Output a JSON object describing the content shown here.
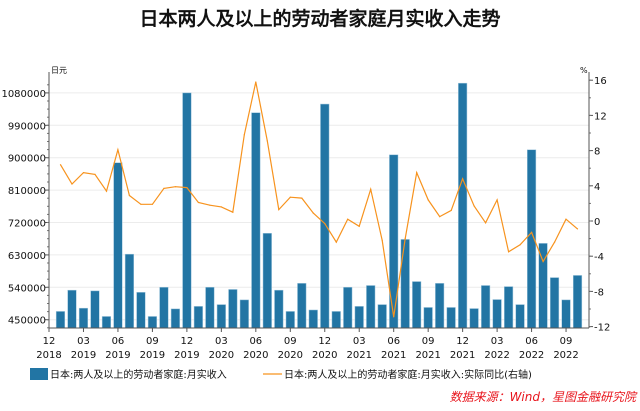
{
  "chart_data": {
    "type": "bar+line",
    "title": "日本两人及以上的劳动者家庭月实收入走势",
    "left_unit": "日元",
    "right_unit": "%",
    "left_ylim": [
      427000,
      1110000
    ],
    "left_ticks": [
      450000,
      540000,
      630000,
      720000,
      810000,
      900000,
      990000,
      1080000
    ],
    "right_ylim": [
      -12,
      16
    ],
    "right_ticks": [
      -12,
      -8,
      -4,
      0,
      4,
      8,
      12,
      16
    ],
    "x_tick_labels": [
      {
        "month": "12",
        "year": "2018"
      },
      {
        "month": "03",
        "year": "2019"
      },
      {
        "month": "06",
        "year": "2019"
      },
      {
        "month": "09",
        "year": "2019"
      },
      {
        "month": "12",
        "year": "2019"
      },
      {
        "month": "03",
        "year": "2020"
      },
      {
        "month": "06",
        "year": "2020"
      },
      {
        "month": "09",
        "year": "2020"
      },
      {
        "month": "12",
        "year": "2020"
      },
      {
        "month": "03",
        "year": "2021"
      },
      {
        "month": "06",
        "year": "2021"
      },
      {
        "month": "09",
        "year": "2021"
      },
      {
        "month": "12",
        "year": "2021"
      },
      {
        "month": "03",
        "year": "2022"
      },
      {
        "month": "06",
        "year": "2022"
      },
      {
        "month": "09",
        "year": "2022"
      }
    ],
    "x": [
      "2019-01",
      "2019-02",
      "2019-03",
      "2019-04",
      "2019-05",
      "2019-06",
      "2019-07",
      "2019-08",
      "2019-09",
      "2019-10",
      "2019-11",
      "2019-12",
      "2020-01",
      "2020-02",
      "2020-03",
      "2020-04",
      "2020-05",
      "2020-06",
      "2020-07",
      "2020-08",
      "2020-09",
      "2020-10",
      "2020-11",
      "2020-12",
      "2021-01",
      "2021-02",
      "2021-03",
      "2021-04",
      "2021-05",
      "2021-06",
      "2021-07",
      "2021-08",
      "2021-09",
      "2021-10",
      "2021-11",
      "2021-12",
      "2022-01",
      "2022-02",
      "2022-03",
      "2022-04",
      "2022-05",
      "2022-06",
      "2022-07",
      "2022-08",
      "2022-09",
      "2022-10"
    ],
    "grid": "horizontal",
    "legend_position": "bottom",
    "series": [
      {
        "name": "日本:两人及以上的劳动者家庭:月实收入",
        "type": "bar",
        "axis": "left",
        "color": "#2275a4",
        "values": [
          473000,
          532000,
          482000,
          530000,
          459000,
          886000,
          632000,
          526000,
          459000,
          540000,
          480000,
          1080000,
          487000,
          540000,
          492000,
          534000,
          505000,
          1025000,
          690000,
          532000,
          473000,
          551000,
          477000,
          1049000,
          473000,
          540000,
          487000,
          545000,
          492000,
          908000,
          673000,
          556000,
          484000,
          551000,
          484000,
          1107000,
          481000,
          545000,
          506000,
          542000,
          492000,
          922000,
          662000,
          567000,
          505000,
          573000
        ]
      },
      {
        "name": "日本:两人及以上的劳动者家庭:月实收入:实际同比(右轴)",
        "type": "line",
        "axis": "right",
        "color": "#f7931e",
        "values": [
          6.4,
          4.2,
          5.5,
          5.3,
          3.4,
          8.1,
          2.9,
          1.9,
          1.9,
          3.7,
          3.9,
          3.8,
          2.1,
          1.8,
          1.6,
          1.0,
          9.8,
          15.8,
          9.1,
          1.3,
          2.7,
          2.6,
          0.9,
          -0.3,
          -2.4,
          0.2,
          -0.6,
          3.6,
          -2.2,
          -10.9,
          -2.0,
          5.5,
          2.4,
          0.5,
          1.2,
          4.8,
          1.7,
          -0.2,
          2.4,
          -3.5,
          -2.7,
          -1.3,
          -4.6,
          -2.4,
          0.2,
          -0.9
        ]
      }
    ],
    "source": "数据来源：Wind，星图金融研究院"
  }
}
